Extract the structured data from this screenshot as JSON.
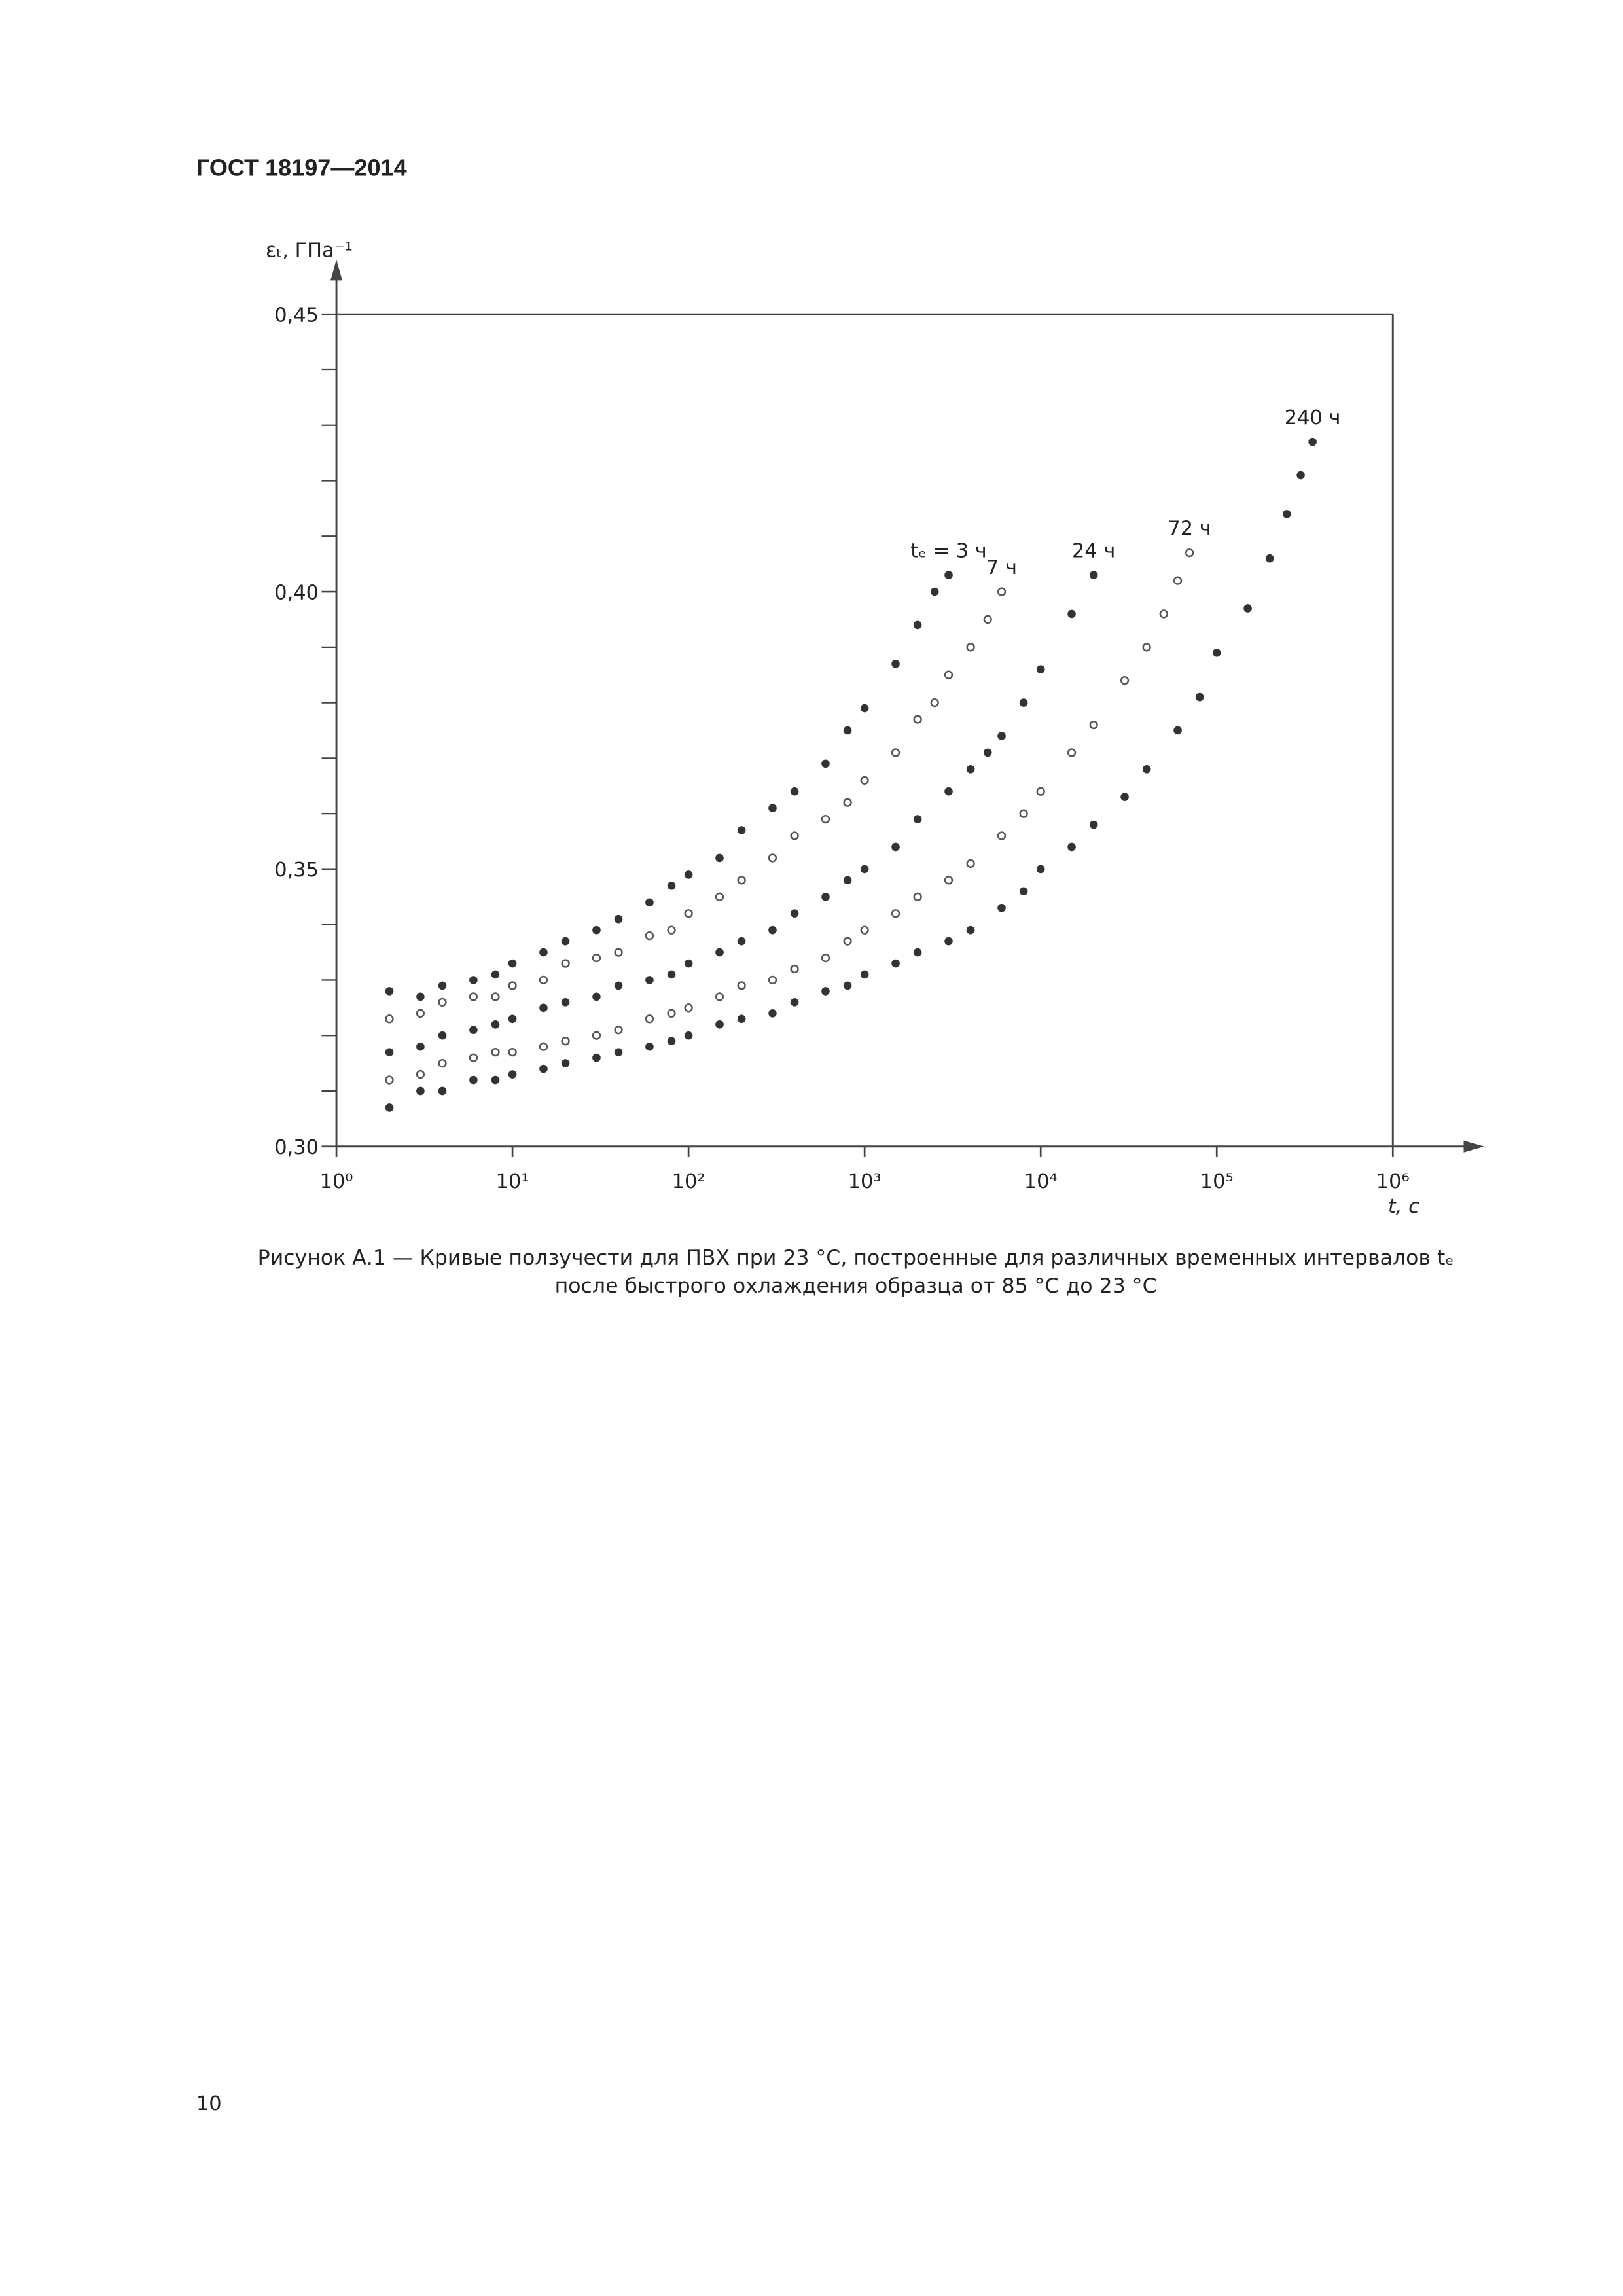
{
  "header": {
    "title": "ГОСТ 18197—2014"
  },
  "chart_data": {
    "type": "scatter",
    "xlabel": "t, с",
    "ylabel": "εₜ, ГПа⁻¹",
    "xscale": "log",
    "xlim": [
      1,
      1000000
    ],
    "xticks": [
      {
        "value": 1,
        "label": "10⁰"
      },
      {
        "value": 10,
        "label": "10¹"
      },
      {
        "value": 100,
        "label": "10²"
      },
      {
        "value": 1000,
        "label": "10³"
      },
      {
        "value": 10000,
        "label": "10⁴"
      },
      {
        "value": 100000,
        "label": "10⁵"
      },
      {
        "value": 1000000,
        "label": "10⁶"
      }
    ],
    "ylim": [
      0.3,
      0.45
    ],
    "yticks": [
      {
        "value": 0.3,
        "label": "0,30"
      },
      {
        "value": 0.35,
        "label": "0,35"
      },
      {
        "value": 0.4,
        "label": "0,40"
      },
      {
        "value": 0.45,
        "label": "0,45"
      }
    ],
    "yminorticks": [
      0.31,
      0.32,
      0.33,
      0.34,
      0.36,
      0.37,
      0.38,
      0.39,
      0.41,
      0.42,
      0.43,
      0.44
    ],
    "series": [
      {
        "name": "tₑ = 3 ч",
        "marker": "filled",
        "color": "#333333",
        "x": [
          2,
          3,
          4,
          6,
          8,
          10,
          15,
          20,
          30,
          40,
          60,
          80,
          100,
          150,
          200,
          300,
          400,
          600,
          800,
          1000,
          1500,
          2000,
          2500,
          3000
        ],
        "values": [
          0.328,
          0.327,
          0.329,
          0.33,
          0.331,
          0.333,
          0.335,
          0.337,
          0.339,
          0.341,
          0.344,
          0.347,
          0.349,
          0.352,
          0.357,
          0.361,
          0.364,
          0.369,
          0.375,
          0.379,
          0.387,
          0.394,
          0.4,
          0.403
        ]
      },
      {
        "name": "7 ч",
        "marker": "open",
        "color": "#555555",
        "x": [
          2,
          3,
          4,
          6,
          8,
          10,
          15,
          20,
          30,
          40,
          60,
          80,
          100,
          150,
          200,
          300,
          400,
          600,
          800,
          1000,
          1500,
          2000,
          2500,
          3000,
          4000,
          5000,
          6000
        ],
        "values": [
          0.323,
          0.324,
          0.326,
          0.327,
          0.327,
          0.329,
          0.33,
          0.333,
          0.334,
          0.335,
          0.338,
          0.339,
          0.342,
          0.345,
          0.348,
          0.352,
          0.356,
          0.359,
          0.362,
          0.366,
          0.371,
          0.377,
          0.38,
          0.385,
          0.39,
          0.395,
          0.4
        ]
      },
      {
        "name": "24 ч",
        "marker": "filled",
        "color": "#333333",
        "x": [
          2,
          3,
          4,
          6,
          8,
          10,
          15,
          20,
          30,
          40,
          60,
          80,
          100,
          150,
          200,
          300,
          400,
          600,
          800,
          1000,
          1500,
          2000,
          3000,
          4000,
          5000,
          6000,
          8000,
          10000,
          15000,
          20000
        ],
        "values": [
          0.317,
          0.318,
          0.32,
          0.321,
          0.322,
          0.323,
          0.325,
          0.326,
          0.327,
          0.329,
          0.33,
          0.331,
          0.333,
          0.335,
          0.337,
          0.339,
          0.342,
          0.345,
          0.348,
          0.35,
          0.354,
          0.359,
          0.364,
          0.368,
          0.371,
          0.374,
          0.38,
          0.386,
          0.396,
          0.403
        ]
      },
      {
        "name": "72 ч",
        "marker": "open",
        "color": "#555555",
        "x": [
          2,
          3,
          4,
          6,
          8,
          10,
          15,
          20,
          30,
          40,
          60,
          80,
          100,
          150,
          200,
          300,
          400,
          600,
          800,
          1000,
          1500,
          2000,
          3000,
          4000,
          6000,
          8000,
          10000,
          15000,
          20000,
          30000,
          40000,
          50000,
          60000,
          70000
        ],
        "values": [
          0.312,
          0.313,
          0.315,
          0.316,
          0.317,
          0.317,
          0.318,
          0.319,
          0.32,
          0.321,
          0.323,
          0.324,
          0.325,
          0.327,
          0.329,
          0.33,
          0.332,
          0.334,
          0.337,
          0.339,
          0.342,
          0.345,
          0.348,
          0.351,
          0.356,
          0.36,
          0.364,
          0.371,
          0.376,
          0.384,
          0.39,
          0.396,
          0.402,
          0.407
        ]
      },
      {
        "name": "240 ч",
        "marker": "filled",
        "color": "#333333",
        "x": [
          2,
          3,
          4,
          6,
          8,
          10,
          15,
          20,
          30,
          40,
          60,
          80,
          100,
          150,
          200,
          300,
          400,
          600,
          800,
          1000,
          1500,
          2000,
          3000,
          4000,
          6000,
          8000,
          10000,
          15000,
          20000,
          30000,
          40000,
          60000,
          80000,
          100000,
          150000,
          200000,
          250000,
          300000,
          350000
        ],
        "values": [
          0.307,
          0.31,
          0.31,
          0.312,
          0.312,
          0.313,
          0.314,
          0.315,
          0.316,
          0.317,
          0.318,
          0.319,
          0.32,
          0.322,
          0.323,
          0.324,
          0.326,
          0.328,
          0.329,
          0.331,
          0.333,
          0.335,
          0.337,
          0.339,
          0.343,
          0.346,
          0.35,
          0.354,
          0.358,
          0.363,
          0.368,
          0.375,
          0.381,
          0.389,
          0.397,
          0.406,
          0.414,
          0.421,
          0.427
        ]
      }
    ]
  },
  "caption": [
    "Рисунок А.1 — Кривые ползучести для ПВХ при 23 °С, построенные для различных временных интервалов tₑ",
    "после быстрого охлаждения образца от 85 °С до 23 °С"
  ],
  "page_number": "10"
}
